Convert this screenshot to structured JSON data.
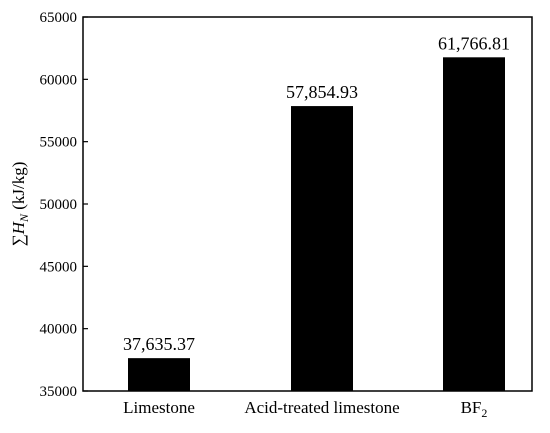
{
  "chart_data": {
    "type": "bar",
    "title": "",
    "xlabel": "",
    "ylabel": {
      "prefix": "∑",
      "symbol": "H",
      "subscript": "N",
      "unit": " (kJ/kg)"
    },
    "categories": [
      "Limestone",
      "Acid-treated limestone",
      "BF2"
    ],
    "category_labels": [
      {
        "text": "Limestone",
        "sub": ""
      },
      {
        "text": "Acid-treated limestone",
        "sub": ""
      },
      {
        "text": "BF",
        "sub": "2"
      }
    ],
    "values": [
      37635.37,
      57854.93,
      61766.81
    ],
    "data_labels": [
      "37,635.37",
      "57,854.93",
      "61,766.81"
    ],
    "ylim": [
      35000,
      65000
    ],
    "yticks": [
      35000,
      40000,
      45000,
      50000,
      55000,
      60000,
      65000
    ],
    "ytick_labels": [
      "35000",
      "40000",
      "45000",
      "50000",
      "55000",
      "60000",
      "65000"
    ],
    "grid": false,
    "bar_color": "#000000"
  }
}
